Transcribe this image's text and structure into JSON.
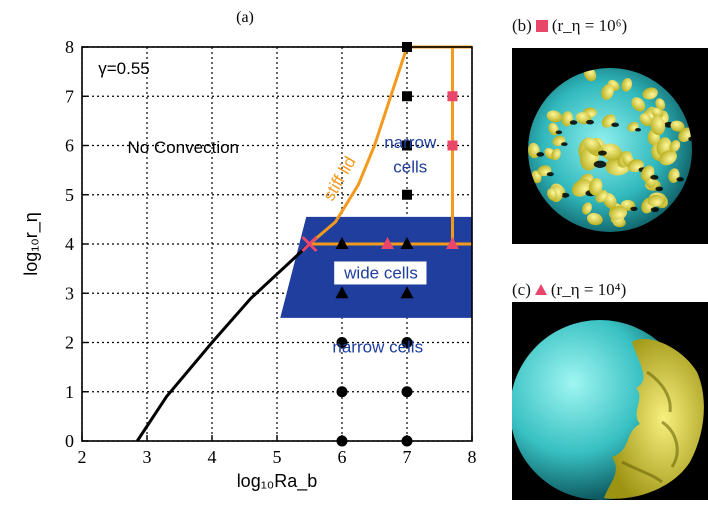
{
  "figure": {
    "panel_a_label": "(a)",
    "panel_b": {
      "label": "(b)",
      "marker": "square",
      "formula": "(r_η = 10⁶)"
    },
    "panel_c": {
      "label": "(c)",
      "marker": "triangle",
      "formula": "(r_η = 10⁴)"
    },
    "colors": {
      "accent_marker": "#e8476a",
      "boundary": "#f39a1e",
      "band": "#1f3e9e",
      "onset_line": "#000000",
      "teal": "#3fc6c6",
      "yellow": "#e8e04a"
    }
  },
  "chart_data": {
    "type": "scatter",
    "xlabel": "log₁₀Ra_b",
    "ylabel": "log₁₀r_η",
    "xlim": [
      2,
      8
    ],
    "ylim": [
      0,
      8
    ],
    "xticks": [
      "2",
      "3",
      "4",
      "5",
      "6",
      "7",
      "8"
    ],
    "yticks": [
      "0",
      "1",
      "2",
      "3",
      "4",
      "5",
      "6",
      "7",
      "8"
    ],
    "grid": true,
    "annotations": {
      "gamma": "γ=0.55",
      "no_convection": "No Convection",
      "stiff_lid": "stiff lid",
      "narrow_top_1": "narrow",
      "narrow_top_2": "cells",
      "wide_cells": "wide cells",
      "narrow_bottom": "narrow cells"
    },
    "wide_band": {
      "y_range": [
        2.5,
        4.55
      ],
      "x_start_at_y": {
        "2.5": 5.05,
        "4.55": 5.45
      }
    },
    "onset_curve": [
      [
        2.85,
        0
      ],
      [
        3.3,
        0.9
      ],
      [
        4.0,
        2.0
      ],
      [
        4.6,
        2.9
      ],
      [
        5.5,
        4.0
      ]
    ],
    "stiff_lid_curve": [
      [
        5.5,
        4.0
      ],
      [
        5.9,
        4.45
      ],
      [
        6.25,
        5.2
      ],
      [
        6.5,
        6.0
      ],
      [
        6.75,
        7.0
      ],
      [
        7.0,
        8.0
      ]
    ],
    "boundary_lines": [
      [
        [
          5.5,
          4.0
        ],
        [
          8.0,
          4.0
        ]
      ],
      [
        [
          7.0,
          8.0
        ],
        [
          8.0,
          8.0
        ]
      ],
      [
        [
          7.7,
          4.0
        ],
        [
          7.7,
          8.0
        ]
      ]
    ],
    "series": [
      {
        "marker": "circle",
        "color": "#000000",
        "points": [
          [
            6,
            0
          ],
          [
            7,
            0
          ],
          [
            6,
            1
          ],
          [
            7,
            1
          ],
          [
            6,
            2
          ],
          [
            7,
            2
          ]
        ]
      },
      {
        "marker": "triangle",
        "color": "#000000",
        "points": [
          [
            6,
            3
          ],
          [
            7,
            3
          ],
          [
            6,
            4
          ],
          [
            7,
            4
          ]
        ]
      },
      {
        "marker": "triangle",
        "color": "#e8476a",
        "points": [
          [
            6.7,
            4
          ],
          [
            7.7,
            4
          ]
        ]
      },
      {
        "marker": "square",
        "color": "#000000",
        "points": [
          [
            7,
            5
          ],
          [
            7,
            6
          ],
          [
            7,
            7
          ],
          [
            7,
            8
          ]
        ]
      },
      {
        "marker": "square",
        "color": "#e8476a",
        "points": [
          [
            7.7,
            6
          ],
          [
            7.7,
            7
          ]
        ]
      },
      {
        "marker": "cross",
        "color": "#e8476a",
        "points": [
          [
            5.5,
            4
          ]
        ]
      }
    ]
  }
}
